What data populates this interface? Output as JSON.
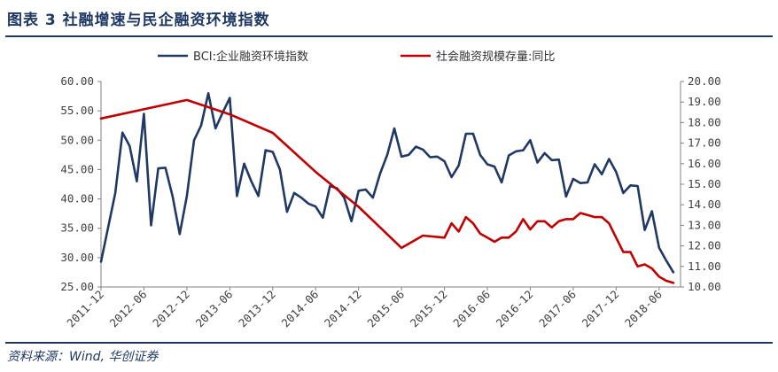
{
  "figure": {
    "title": "图表 3  社融增速与民企融资环境指数",
    "source": "资料来源：Wind, 华创证券"
  },
  "chart_data": {
    "type": "line",
    "legend_position": "top-center",
    "grid": false,
    "x_tick_labels": [
      "2011-12",
      "2012-06",
      "2012-12",
      "2013-06",
      "2013-12",
      "2014-06",
      "2014-12",
      "2015-06",
      "2015-12",
      "2016-06",
      "2016-12",
      "2017-06",
      "2017-12",
      "2018-06"
    ],
    "y_left": {
      "ylim": [
        25,
        60
      ],
      "ticks": [
        "25.00",
        "30.00",
        "35.00",
        "40.00",
        "45.00",
        "50.00",
        "55.00",
        "60.00"
      ]
    },
    "y_right": {
      "ylim": [
        10,
        20
      ],
      "ticks": [
        "10.00",
        "11.00",
        "12.00",
        "13.00",
        "14.00",
        "15.00",
        "16.00",
        "17.00",
        "18.00",
        "19.00",
        "20.00"
      ]
    },
    "series": [
      {
        "name": "BCI:企业融资环境指数",
        "axis": "left",
        "color": "#1f3864",
        "x": [
          "2011-12",
          "2012-02",
          "2012-03",
          "2012-04",
          "2012-05",
          "2012-06",
          "2012-07",
          "2012-08",
          "2012-09",
          "2012-10",
          "2012-11",
          "2012-12",
          "2013-01",
          "2013-02",
          "2013-03",
          "2013-04",
          "2013-05",
          "2013-06",
          "2013-07",
          "2013-08",
          "2013-09",
          "2013-10",
          "2013-11",
          "2013-12",
          "2014-01",
          "2014-02",
          "2014-03",
          "2014-04",
          "2014-05",
          "2014-06",
          "2014-07",
          "2014-08",
          "2014-09",
          "2014-10",
          "2014-11",
          "2014-12",
          "2015-01",
          "2015-02",
          "2015-03",
          "2015-04",
          "2015-05",
          "2015-06",
          "2015-07",
          "2015-08",
          "2015-09",
          "2015-10",
          "2015-11",
          "2015-12",
          "2016-01",
          "2016-02",
          "2016-03",
          "2016-04",
          "2016-05",
          "2016-06",
          "2016-07",
          "2016-08",
          "2016-09",
          "2016-10",
          "2016-11",
          "2016-12",
          "2017-01",
          "2017-02",
          "2017-03",
          "2017-04",
          "2017-05",
          "2017-06",
          "2017-07",
          "2017-08",
          "2017-09",
          "2017-10",
          "2017-11",
          "2017-12",
          "2018-01",
          "2018-02",
          "2018-03",
          "2018-04",
          "2018-05",
          "2018-06",
          "2018-07",
          "2018-08"
        ],
        "values": [
          29.3,
          41.0,
          51.3,
          49.0,
          43.0,
          54.5,
          35.5,
          45.2,
          45.3,
          40.5,
          34.0,
          40.5,
          50.0,
          52.5,
          58.0,
          52.0,
          54.7,
          57.2,
          40.5,
          46.0,
          43.0,
          40.5,
          48.3,
          48.0,
          45.0,
          37.8,
          41.0,
          40.2,
          39.2,
          38.7,
          36.8,
          42.2,
          41.8,
          40.2,
          36.2,
          41.4,
          41.6,
          40.2,
          44.3,
          47.5,
          52.0,
          47.2,
          47.5,
          48.9,
          48.4,
          47.1,
          47.2,
          46.4,
          43.7,
          45.7,
          51.1,
          51.1,
          47.5,
          45.9,
          45.5,
          42.8,
          47.4,
          48.1,
          48.3,
          50.0,
          46.2,
          47.8,
          46.6,
          46.7,
          40.4,
          43.4,
          42.7,
          42.8,
          45.9,
          44.2,
          46.8,
          44.6,
          41.0,
          42.3,
          42.2,
          34.7,
          37.9,
          31.7,
          29.5,
          27.5
        ]
      },
      {
        "name": "社会融资规模存量:同比",
        "axis": "right",
        "color": "#c00000",
        "x": [
          "2011-12",
          "2012-12",
          "2013-06",
          "2013-12",
          "2014-06",
          "2014-12",
          "2015-03",
          "2015-06",
          "2015-09",
          "2015-12",
          "2016-01",
          "2016-02",
          "2016-03",
          "2016-04",
          "2016-05",
          "2016-06",
          "2016-07",
          "2016-08",
          "2016-09",
          "2016-10",
          "2016-11",
          "2016-12",
          "2017-01",
          "2017-02",
          "2017-03",
          "2017-04",
          "2017-05",
          "2017-06",
          "2017-07",
          "2017-08",
          "2017-09",
          "2017-10",
          "2017-11",
          "2017-12",
          "2018-01",
          "2018-02",
          "2018-03",
          "2018-04",
          "2018-05",
          "2018-06",
          "2018-07",
          "2018-08"
        ],
        "values": [
          18.2,
          19.1,
          18.4,
          17.5,
          15.6,
          13.9,
          12.9,
          11.9,
          12.5,
          12.4,
          13.1,
          12.7,
          13.4,
          13.1,
          12.6,
          12.4,
          12.2,
          12.4,
          12.4,
          12.7,
          13.3,
          12.8,
          13.2,
          13.2,
          12.9,
          13.2,
          13.3,
          13.3,
          13.6,
          13.5,
          13.4,
          13.4,
          13.1,
          12.4,
          11.7,
          11.7,
          11.0,
          11.1,
          10.9,
          10.5,
          10.3,
          10.2
        ]
      }
    ]
  }
}
